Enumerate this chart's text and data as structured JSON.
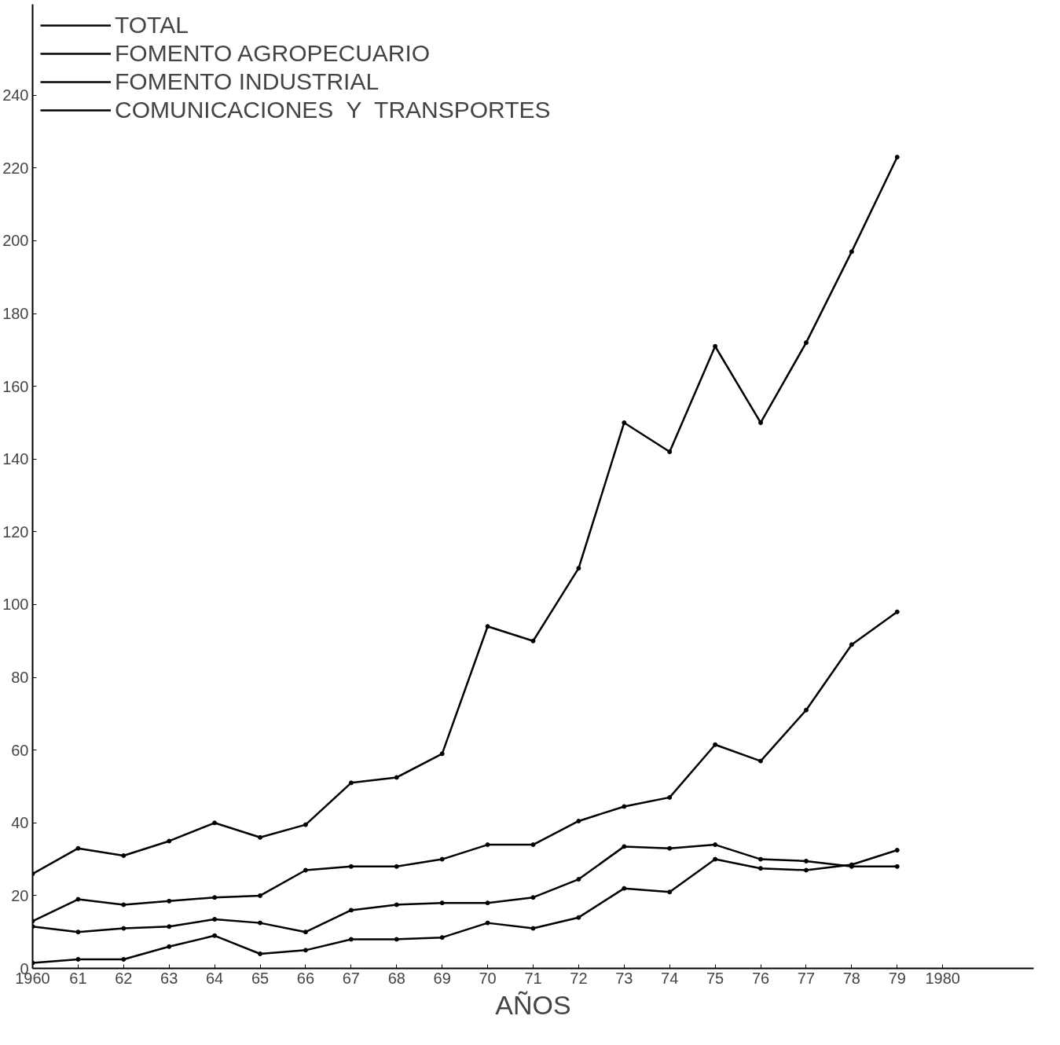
{
  "chart_data": {
    "type": "line",
    "xlabel": "AÑOS",
    "x": [
      1960,
      1961,
      1962,
      1963,
      1964,
      1965,
      1966,
      1967,
      1968,
      1969,
      1970,
      1971,
      1972,
      1973,
      1974,
      1975,
      1976,
      1977,
      1978,
      1979
    ],
    "series": [
      {
        "name": "TOTAL",
        "color": "#000000",
        "values": [
          26,
          33,
          31,
          35,
          40,
          36,
          39.5,
          51,
          52.5,
          59,
          94,
          90,
          110,
          150,
          142,
          171,
          150,
          172,
          197,
          223
        ]
      },
      {
        "name": "FOMENTO AGROPECUARIO",
        "color": "#000000",
        "values": [
          13,
          19,
          17.5,
          18.5,
          19.5,
          20,
          27,
          28,
          28,
          30,
          34,
          34,
          40.5,
          44.5,
          47,
          61.5,
          57,
          71,
          89,
          98
        ]
      },
      {
        "name": "FOMENTO INDUSTRIAL",
        "color": "#000000",
        "values": [
          11.5,
          10,
          11,
          11.5,
          13.5,
          12.5,
          10,
          16,
          17.5,
          18,
          18,
          19.5,
          24.5,
          33.5,
          33,
          34,
          30,
          29.5,
          28,
          28
        ]
      },
      {
        "name": "COMUNICACIONES  Y  TRANSPORTES",
        "color": "#000000",
        "values": [
          1.5,
          2.5,
          2.5,
          6,
          9,
          4,
          5,
          8,
          8,
          8.5,
          12.5,
          11,
          14,
          22,
          21,
          30,
          27.5,
          27,
          28.5,
          32.5
        ]
      }
    ],
    "xlim": [
      1960,
      1982
    ],
    "xticks": [
      {
        "value": 1960,
        "label": "1960"
      },
      {
        "value": 1961,
        "label": "61"
      },
      {
        "value": 1962,
        "label": "62"
      },
      {
        "value": 1963,
        "label": "63"
      },
      {
        "value": 1964,
        "label": "64"
      },
      {
        "value": 1965,
        "label": "65"
      },
      {
        "value": 1966,
        "label": "66"
      },
      {
        "value": 1967,
        "label": "67"
      },
      {
        "value": 1968,
        "label": "68"
      },
      {
        "value": 1969,
        "label": "69"
      },
      {
        "value": 1970,
        "label": "70"
      },
      {
        "value": 1971,
        "label": "71"
      },
      {
        "value": 1972,
        "label": "72"
      },
      {
        "value": 1973,
        "label": "73"
      },
      {
        "value": 1974,
        "label": "74"
      },
      {
        "value": 1975,
        "label": "75"
      },
      {
        "value": 1976,
        "label": "76"
      },
      {
        "value": 1977,
        "label": "77"
      },
      {
        "value": 1978,
        "label": "78"
      },
      {
        "value": 1979,
        "label": "79"
      },
      {
        "value": 1980,
        "label": "1980"
      }
    ],
    "ylim": [
      0,
      265
    ],
    "yticks": [
      0,
      20,
      40,
      60,
      80,
      100,
      120,
      140,
      160,
      180,
      200,
      220,
      240
    ],
    "grid": false,
    "legend": "top left",
    "marker": "circle",
    "line_style": "solid"
  }
}
